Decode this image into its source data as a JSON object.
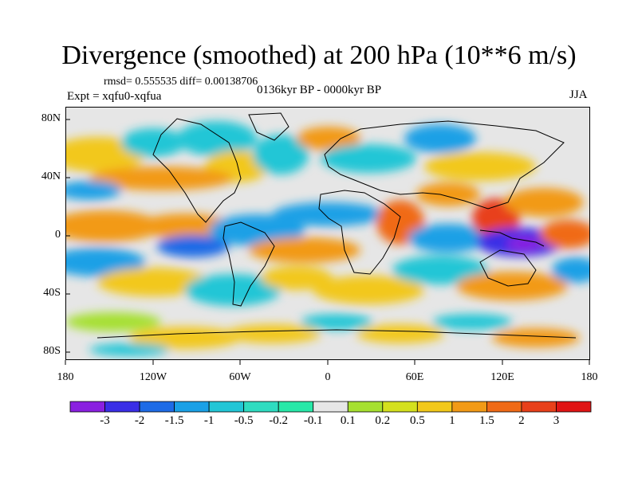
{
  "title": "Divergence (smoothed) at 200 hPa (10**6 m/s)",
  "stats": "rmsd= 0.555535 diff= 0.00138706",
  "experiment": "Expt = xqfu0-xqfua",
  "period": "0136kyr BP - 0000kyr BP",
  "season": "JJA",
  "map": {
    "lat_ticks": [
      "80N",
      "40N",
      "0",
      "40S",
      "80S"
    ],
    "lon_ticks": [
      "180",
      "120W",
      "60W",
      "0",
      "60E",
      "120E",
      "180"
    ]
  },
  "colorbar": {
    "colors": [
      "#8a20e0",
      "#3a2ee6",
      "#1e6be6",
      "#1aa0e6",
      "#22c6d6",
      "#2fdcc0",
      "#28e8a8",
      "#e6e6e6",
      "#a6e030",
      "#d4e01e",
      "#f2c81a",
      "#f29a16",
      "#f06a16",
      "#e8401a",
      "#e01414"
    ],
    "labels": [
      "-3",
      "-2",
      "-1.5",
      "-1",
      "-0.5",
      "-0.2",
      "-0.1",
      "0.1",
      "0.2",
      "0.5",
      "1",
      "1.5",
      "2",
      "3"
    ]
  }
}
